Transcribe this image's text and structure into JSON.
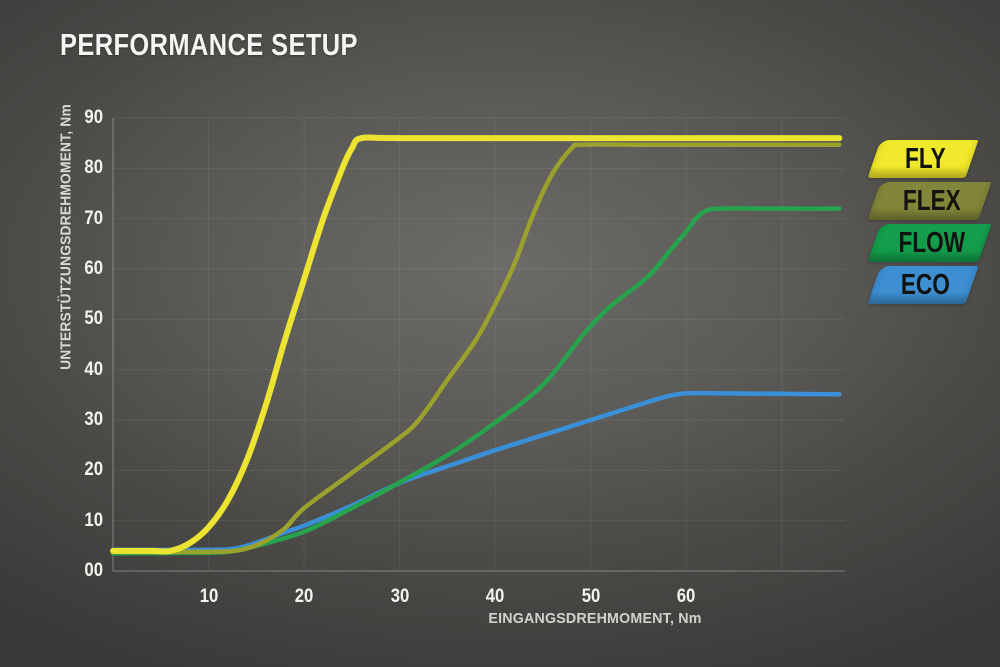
{
  "page": {
    "title": "PERFORMANCE SETUP"
  },
  "colors": {
    "title_text": "#f5f5f3",
    "tick_text": "#f2f2ef",
    "axis_title_text": "#d6d5d2",
    "background_center": "#6c6b67",
    "background_edge": "#3a3938"
  },
  "chart_data": {
    "type": "line",
    "title": "PERFORMANCE SETUP",
    "xlabel": "EINGANGSDREHMOMENT, Nm",
    "ylabel": "UNTERSTÜTZUNGSDREHMOMENT, Nm",
    "xlim": [
      0,
      76.6
    ],
    "ylim": [
      0,
      90
    ],
    "grid": true,
    "legend_position": "right",
    "x_ticks": [
      {
        "v": 10,
        "label": "10"
      },
      {
        "v": 20,
        "label": "20"
      },
      {
        "v": 30,
        "label": "30"
      },
      {
        "v": 40,
        "label": "40"
      },
      {
        "v": 50,
        "label": "50"
      },
      {
        "v": 60,
        "label": "60"
      }
    ],
    "y_ticks": [
      {
        "v": 0,
        "label": "00"
      },
      {
        "v": 10,
        "label": "10"
      },
      {
        "v": 20,
        "label": "20"
      },
      {
        "v": 30,
        "label": "30"
      },
      {
        "v": 40,
        "label": "40"
      },
      {
        "v": 50,
        "label": "50"
      },
      {
        "v": 60,
        "label": "60"
      },
      {
        "v": 70,
        "label": "70"
      },
      {
        "v": 80,
        "label": "80"
      },
      {
        "v": 90,
        "label": "90"
      }
    ],
    "grid_x": [
      10,
      20,
      30,
      40,
      50,
      60,
      70
    ],
    "grid_y": [
      10,
      20,
      30,
      40,
      50,
      60,
      70,
      80,
      90
    ],
    "series": [
      {
        "name": "FLY",
        "color": "#ece431",
        "plateau": 86,
        "points": [
          [
            0,
            4
          ],
          [
            4,
            4
          ],
          [
            6,
            4
          ],
          [
            8,
            5.5
          ],
          [
            10,
            8.7
          ],
          [
            12,
            14
          ],
          [
            14,
            22
          ],
          [
            16,
            33
          ],
          [
            18,
            46
          ],
          [
            20,
            58
          ],
          [
            22,
            70
          ],
          [
            24,
            80
          ],
          [
            25,
            84
          ],
          [
            26,
            86
          ],
          [
            30,
            86
          ],
          [
            50,
            86
          ],
          [
            76,
            86
          ]
        ]
      },
      {
        "name": "FLEX",
        "color": "#9aa12c",
        "plateau": 84.7,
        "points": [
          [
            0,
            3.8
          ],
          [
            8,
            3.8
          ],
          [
            12,
            3.9
          ],
          [
            14,
            4.5
          ],
          [
            16,
            6
          ],
          [
            18,
            8.5
          ],
          [
            20,
            12.5
          ],
          [
            25,
            19.5
          ],
          [
            30,
            26.5
          ],
          [
            32,
            30
          ],
          [
            35,
            38
          ],
          [
            38,
            46
          ],
          [
            40,
            53
          ],
          [
            42,
            61
          ],
          [
            44,
            71
          ],
          [
            46,
            79
          ],
          [
            48,
            84
          ],
          [
            49,
            84.7
          ],
          [
            55,
            84.7
          ],
          [
            76,
            84.7
          ]
        ]
      },
      {
        "name": "FLOW",
        "color": "#27a24d",
        "plateau": 72,
        "points": [
          [
            0,
            3.5
          ],
          [
            8,
            3.6
          ],
          [
            12,
            3.8
          ],
          [
            15,
            5
          ],
          [
            20,
            7.8
          ],
          [
            25,
            12.5
          ],
          [
            30,
            17.6
          ],
          [
            35,
            23
          ],
          [
            40,
            29.5
          ],
          [
            45,
            37
          ],
          [
            49,
            46.5
          ],
          [
            52,
            52.5
          ],
          [
            56,
            58.5
          ],
          [
            58,
            63
          ],
          [
            60,
            67.5
          ],
          [
            61,
            70
          ],
          [
            62,
            71.5
          ],
          [
            63.5,
            72
          ],
          [
            68,
            72
          ],
          [
            76,
            72
          ]
        ]
      },
      {
        "name": "ECO",
        "color": "#3a90d8",
        "plateau": 35,
        "points": [
          [
            0,
            4.2
          ],
          [
            8,
            4.2
          ],
          [
            12,
            4.3
          ],
          [
            14,
            5
          ],
          [
            16,
            6.3
          ],
          [
            18,
            7.7
          ],
          [
            20,
            9
          ],
          [
            25,
            13
          ],
          [
            30,
            17.5
          ],
          [
            35,
            20.8
          ],
          [
            40,
            24
          ],
          [
            45,
            27
          ],
          [
            50,
            30
          ],
          [
            53,
            31.8
          ],
          [
            56,
            33.6
          ],
          [
            58,
            34.7
          ],
          [
            60,
            35.3
          ],
          [
            63,
            35.3
          ],
          [
            70,
            35.2
          ],
          [
            76,
            35.1
          ]
        ]
      }
    ]
  },
  "legend": {
    "items": [
      {
        "label": "FLY",
        "color": "#f1e92c"
      },
      {
        "label": "FLEX",
        "color": "#82863a"
      },
      {
        "label": "FLOW",
        "color": "#149d4b"
      },
      {
        "label": "ECO",
        "color": "#3e8ed2"
      }
    ]
  }
}
